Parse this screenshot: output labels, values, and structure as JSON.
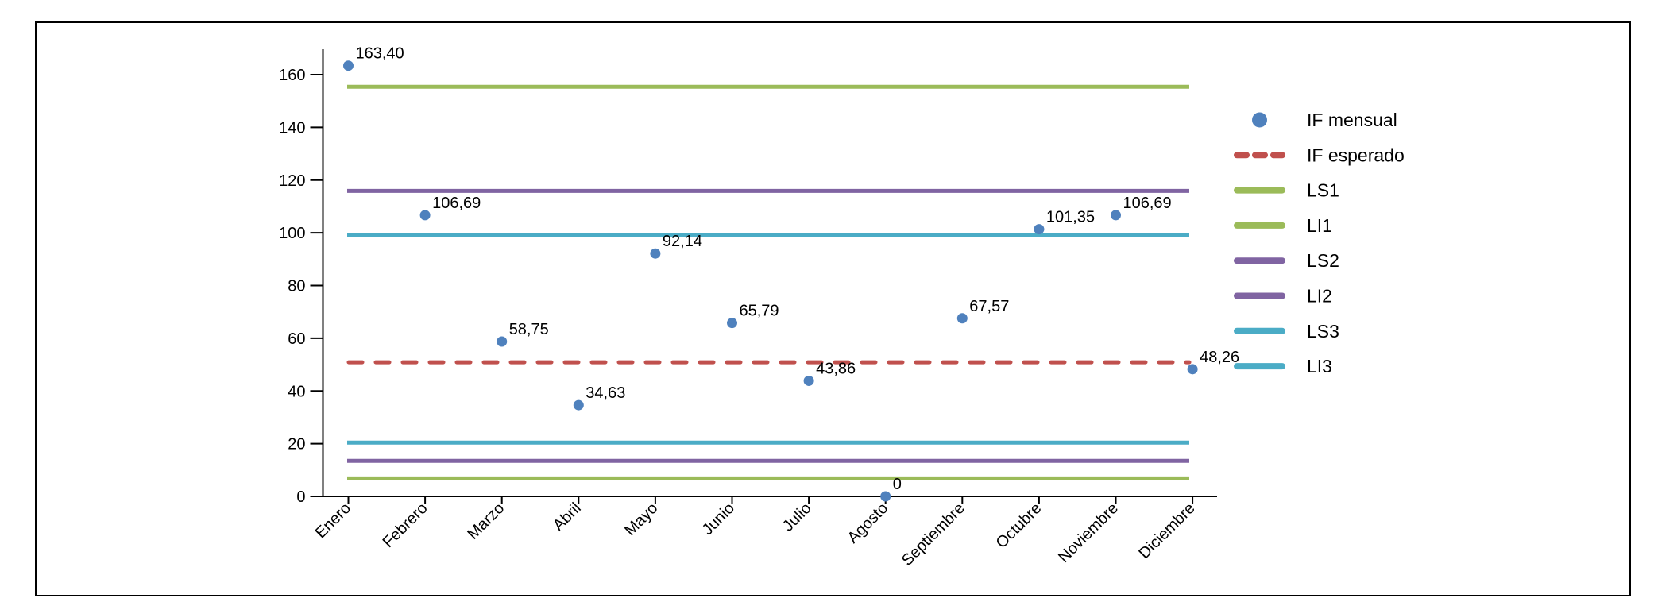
{
  "chart_data": {
    "type": "scatter",
    "title": "",
    "xlabel": "",
    "ylabel": "",
    "ylim": [
      0,
      170
    ],
    "yticks": [
      0,
      20,
      40,
      60,
      80,
      100,
      120,
      140,
      160
    ],
    "grid": false,
    "legend_position": "right",
    "categories": [
      "Enero",
      "Febrero",
      "Marzo",
      "Abril",
      "Mayo",
      "Junio",
      "Julio",
      "Agosto",
      "Septiembre",
      "Octubre",
      "Noviembre",
      "Diciembre"
    ],
    "points": {
      "name": "IF mensual",
      "color": "#4f81bd",
      "values": [
        163.4,
        106.69,
        58.75,
        34.63,
        92.14,
        65.79,
        43.86,
        0,
        67.57,
        101.35,
        106.69,
        48.26
      ],
      "labels": [
        "163,40",
        "106,69",
        "58,75",
        "34,63",
        "92,14",
        "65,79",
        "43,86",
        "0",
        "67,57",
        "101,35",
        "106,69",
        "48,26"
      ]
    },
    "reference_lines": [
      {
        "name": "IF esperado",
        "value": 50.9,
        "color": "#c0504d",
        "style": "dashed"
      },
      {
        "name": "LS1",
        "value": 155.4,
        "color": "#9bbb59",
        "style": "solid"
      },
      {
        "name": "LI1",
        "value": 6.8,
        "color": "#9bbb59",
        "style": "solid"
      },
      {
        "name": "LS2",
        "value": 115.9,
        "color": "#8064a2",
        "style": "solid"
      },
      {
        "name": "LI2",
        "value": 13.5,
        "color": "#8064a2",
        "style": "solid"
      },
      {
        "name": "LS3",
        "value": 99.0,
        "color": "#4bacc6",
        "style": "solid"
      },
      {
        "name": "LI3",
        "value": 20.4,
        "color": "#4bacc6",
        "style": "solid"
      }
    ],
    "legend": [
      {
        "label": "IF mensual",
        "symbol": "dot",
        "color": "#4f81bd"
      },
      {
        "label": "IF esperado",
        "symbol": "dashed-line",
        "color": "#c0504d"
      },
      {
        "label": "LS1",
        "symbol": "line",
        "color": "#9bbb59"
      },
      {
        "label": "LI1",
        "symbol": "line",
        "color": "#9bbb59"
      },
      {
        "label": "LS2",
        "symbol": "line",
        "color": "#8064a2"
      },
      {
        "label": "LI2",
        "symbol": "line",
        "color": "#8064a2"
      },
      {
        "label": "LS3",
        "symbol": "line",
        "color": "#4bacc6"
      },
      {
        "label": "LI3",
        "symbol": "line",
        "color": "#4bacc6"
      }
    ]
  }
}
